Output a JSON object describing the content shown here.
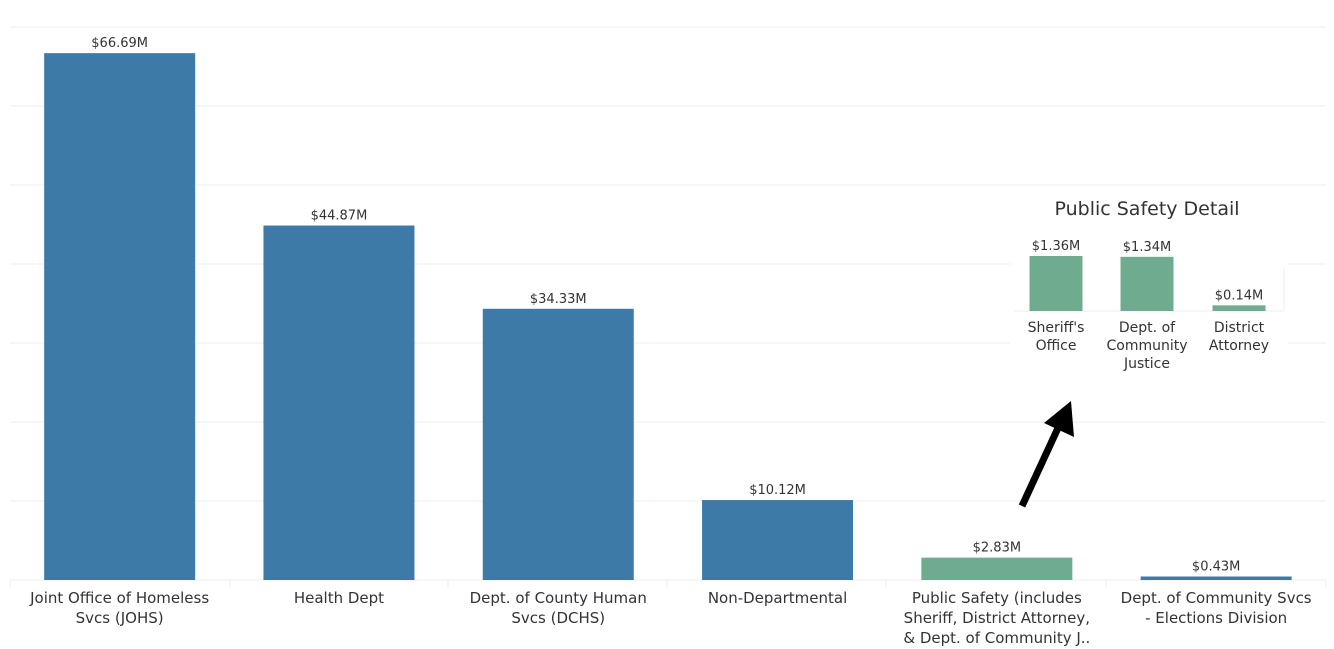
{
  "colors": {
    "main_bar": "#3e7aa8",
    "highlight_bar": "#6fac8f",
    "grid": "#ececec",
    "arrow": "#000000",
    "text": "#333333"
  },
  "chart_data": [
    {
      "type": "bar",
      "title": "",
      "xlabel": "",
      "ylabel": "",
      "ylim": [
        0,
        70
      ],
      "grid": "horizontal",
      "categories": [
        [
          "Joint Office of Homeless",
          "Svcs (JOHS)"
        ],
        [
          "Health Dept"
        ],
        [
          "Dept. of County Human",
          "Svcs (DCHS)"
        ],
        [
          "Non-Departmental"
        ],
        [
          "Public Safety (includes",
          "Sheriff, District Attorney,",
          "& Dept. of Community J.."
        ],
        [
          "Dept. of Community Svcs",
          "- Elections Division"
        ]
      ],
      "values": [
        66.69,
        44.87,
        34.33,
        10.12,
        2.83,
        0.43
      ],
      "value_labels": [
        "$66.69M",
        "$44.87M",
        "$34.33M",
        "$10.12M",
        "$2.83M",
        "$0.43M"
      ],
      "highlight_index": 4
    },
    {
      "type": "bar",
      "title": "Public Safety Detail",
      "xlabel": "",
      "ylabel": "",
      "ylim": [
        0,
        1.36
      ],
      "categories": [
        [
          "Sheriff's",
          "Office"
        ],
        [
          "Dept. of",
          "Community",
          "Justice"
        ],
        [
          "District",
          "Attorney"
        ]
      ],
      "values": [
        1.36,
        1.34,
        0.14
      ],
      "value_labels": [
        "$1.36M",
        "$1.34M",
        "$0.14M"
      ]
    }
  ]
}
